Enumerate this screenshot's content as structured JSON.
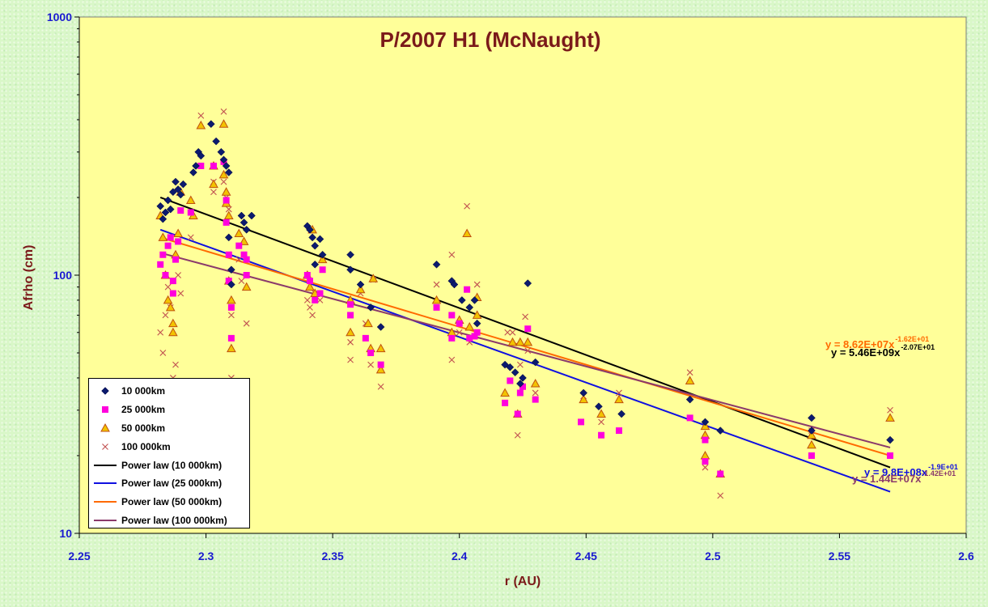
{
  "chart_data": {
    "type": "scatter",
    "title": "P/2007 H1 (McNaught)",
    "xlabel": "r (AU)",
    "ylabel": "Afrho (cm)",
    "xlim": [
      2.25,
      2.6
    ],
    "ylim": [
      10,
      1000
    ],
    "y_scale": "log",
    "x_ticks": [
      "2.25",
      "2.3",
      "2.35",
      "2.4",
      "2.45",
      "2.5",
      "2.55",
      "2.6"
    ],
    "y_ticks": [
      "10",
      "100",
      "1000"
    ],
    "grid": false,
    "legend_position": "bottom-left",
    "series": [
      {
        "name": "10 000km",
        "marker": "diamond",
        "color": "#0b1a6e",
        "points": [
          [
            2.282,
            185
          ],
          [
            2.283,
            165
          ],
          [
            2.284,
            175
          ],
          [
            2.285,
            195
          ],
          [
            2.286,
            180
          ],
          [
            2.287,
            210
          ],
          [
            2.288,
            230
          ],
          [
            2.289,
            215
          ],
          [
            2.29,
            205
          ],
          [
            2.291,
            225
          ],
          [
            2.295,
            250
          ],
          [
            2.296,
            265
          ],
          [
            2.297,
            300
          ],
          [
            2.298,
            290
          ],
          [
            2.302,
            385
          ],
          [
            2.304,
            330
          ],
          [
            2.306,
            300
          ],
          [
            2.307,
            280
          ],
          [
            2.308,
            265
          ],
          [
            2.309,
            250
          ],
          [
            2.309,
            140
          ],
          [
            2.31,
            105
          ],
          [
            2.31,
            92
          ],
          [
            2.314,
            170
          ],
          [
            2.315,
            160
          ],
          [
            2.316,
            150
          ],
          [
            2.318,
            170
          ],
          [
            2.34,
            155
          ],
          [
            2.341,
            150
          ],
          [
            2.342,
            140
          ],
          [
            2.343,
            130
          ],
          [
            2.343,
            110
          ],
          [
            2.345,
            138
          ],
          [
            2.346,
            120
          ],
          [
            2.357,
            120
          ],
          [
            2.357,
            105
          ],
          [
            2.361,
            92
          ],
          [
            2.365,
            75
          ],
          [
            2.369,
            63
          ],
          [
            2.391,
            110
          ],
          [
            2.397,
            95
          ],
          [
            2.398,
            92
          ],
          [
            2.401,
            80
          ],
          [
            2.404,
            75
          ],
          [
            2.406,
            80
          ],
          [
            2.407,
            65
          ],
          [
            2.418,
            45
          ],
          [
            2.42,
            44
          ],
          [
            2.422,
            42
          ],
          [
            2.424,
            38
          ],
          [
            2.425,
            40
          ],
          [
            2.427,
            93
          ],
          [
            2.43,
            46
          ],
          [
            2.449,
            35
          ],
          [
            2.455,
            31
          ],
          [
            2.464,
            29
          ],
          [
            2.491,
            33
          ],
          [
            2.497,
            27
          ],
          [
            2.503,
            25
          ],
          [
            2.539,
            28
          ],
          [
            2.539,
            25
          ],
          [
            2.57,
            23
          ]
        ]
      },
      {
        "name": "25 000km",
        "marker": "square",
        "color": "#ff00dd",
        "points": [
          [
            2.282,
            110
          ],
          [
            2.283,
            120
          ],
          [
            2.284,
            100
          ],
          [
            2.285,
            130
          ],
          [
            2.286,
            140
          ],
          [
            2.287,
            95
          ],
          [
            2.287,
            85
          ],
          [
            2.288,
            115
          ],
          [
            2.289,
            135
          ],
          [
            2.29,
            178
          ],
          [
            2.294,
            175
          ],
          [
            2.298,
            265
          ],
          [
            2.303,
            265
          ],
          [
            2.307,
            275
          ],
          [
            2.308,
            195
          ],
          [
            2.308,
            160
          ],
          [
            2.309,
            120
          ],
          [
            2.309,
            95
          ],
          [
            2.31,
            75
          ],
          [
            2.31,
            57
          ],
          [
            2.313,
            130
          ],
          [
            2.315,
            120
          ],
          [
            2.316,
            115
          ],
          [
            2.316,
            100
          ],
          [
            2.34,
            100
          ],
          [
            2.341,
            95
          ],
          [
            2.343,
            80
          ],
          [
            2.345,
            85
          ],
          [
            2.346,
            105
          ],
          [
            2.357,
            77
          ],
          [
            2.357,
            70
          ],
          [
            2.363,
            57
          ],
          [
            2.365,
            50
          ],
          [
            2.369,
            45
          ],
          [
            2.391,
            75
          ],
          [
            2.397,
            70
          ],
          [
            2.397,
            57
          ],
          [
            2.4,
            65
          ],
          [
            2.403,
            88
          ],
          [
            2.404,
            57
          ],
          [
            2.406,
            58
          ],
          [
            2.407,
            60
          ],
          [
            2.418,
            32
          ],
          [
            2.42,
            39
          ],
          [
            2.423,
            29
          ],
          [
            2.424,
            35
          ],
          [
            2.425,
            37
          ],
          [
            2.427,
            62
          ],
          [
            2.43,
            33
          ],
          [
            2.448,
            27
          ],
          [
            2.456,
            24
          ],
          [
            2.463,
            25
          ],
          [
            2.491,
            28
          ],
          [
            2.497,
            23
          ],
          [
            2.497,
            19
          ],
          [
            2.503,
            17
          ],
          [
            2.539,
            20
          ],
          [
            2.57,
            20
          ]
        ]
      },
      {
        "name": "50 000km",
        "marker": "triangle",
        "color": "#f2c300",
        "points": [
          [
            2.282,
            170
          ],
          [
            2.283,
            140
          ],
          [
            2.284,
            100
          ],
          [
            2.285,
            80
          ],
          [
            2.286,
            75
          ],
          [
            2.287,
            65
          ],
          [
            2.287,
            60
          ],
          [
            2.288,
            120
          ],
          [
            2.289,
            145
          ],
          [
            2.29,
            210
          ],
          [
            2.294,
            195
          ],
          [
            2.295,
            170
          ],
          [
            2.298,
            380
          ],
          [
            2.303,
            265
          ],
          [
            2.303,
            225
          ],
          [
            2.307,
            385
          ],
          [
            2.307,
            245
          ],
          [
            2.308,
            210
          ],
          [
            2.308,
            190
          ],
          [
            2.309,
            170
          ],
          [
            2.309,
            95
          ],
          [
            2.31,
            80
          ],
          [
            2.31,
            52
          ],
          [
            2.313,
            145
          ],
          [
            2.315,
            135
          ],
          [
            2.316,
            90
          ],
          [
            2.34,
            100
          ],
          [
            2.341,
            90
          ],
          [
            2.342,
            150
          ],
          [
            2.343,
            85
          ],
          [
            2.346,
            115
          ],
          [
            2.357,
            80
          ],
          [
            2.357,
            60
          ],
          [
            2.361,
            88
          ],
          [
            2.364,
            65
          ],
          [
            2.365,
            52
          ],
          [
            2.366,
            97
          ],
          [
            2.369,
            52
          ],
          [
            2.369,
            43
          ],
          [
            2.391,
            80
          ],
          [
            2.397,
            60
          ],
          [
            2.4,
            67
          ],
          [
            2.403,
            145
          ],
          [
            2.404,
            63
          ],
          [
            2.407,
            70
          ],
          [
            2.407,
            82
          ],
          [
            2.418,
            35
          ],
          [
            2.421,
            55
          ],
          [
            2.423,
            29
          ],
          [
            2.424,
            55
          ],
          [
            2.427,
            55
          ],
          [
            2.43,
            38
          ],
          [
            2.449,
            33
          ],
          [
            2.456,
            29
          ],
          [
            2.463,
            33
          ],
          [
            2.491,
            39
          ],
          [
            2.497,
            26
          ],
          [
            2.497,
            20
          ],
          [
            2.497,
            24
          ],
          [
            2.503,
            17
          ],
          [
            2.539,
            24
          ],
          [
            2.539,
            22
          ],
          [
            2.57,
            28
          ]
        ]
      },
      {
        "name": "100 000km",
        "marker": "x",
        "color": "#c05050",
        "points": [
          [
            2.282,
            60
          ],
          [
            2.283,
            50
          ],
          [
            2.284,
            70
          ],
          [
            2.285,
            90
          ],
          [
            2.286,
            75
          ],
          [
            2.287,
            40
          ],
          [
            2.288,
            45
          ],
          [
            2.289,
            100
          ],
          [
            2.29,
            85
          ],
          [
            2.294,
            140
          ],
          [
            2.298,
            415
          ],
          [
            2.303,
            210
          ],
          [
            2.303,
            230
          ],
          [
            2.307,
            430
          ],
          [
            2.307,
            230
          ],
          [
            2.308,
            200
          ],
          [
            2.309,
            180
          ],
          [
            2.309,
            120
          ],
          [
            2.31,
            40
          ],
          [
            2.31,
            70
          ],
          [
            2.313,
            115
          ],
          [
            2.314,
            95
          ],
          [
            2.316,
            65
          ],
          [
            2.34,
            80
          ],
          [
            2.341,
            75
          ],
          [
            2.342,
            70
          ],
          [
            2.343,
            85
          ],
          [
            2.345,
            80
          ],
          [
            2.357,
            47
          ],
          [
            2.357,
            55
          ],
          [
            2.361,
            85
          ],
          [
            2.363,
            65
          ],
          [
            2.365,
            45
          ],
          [
            2.366,
            96
          ],
          [
            2.369,
            37
          ],
          [
            2.391,
            92
          ],
          [
            2.397,
            120
          ],
          [
            2.397,
            47
          ],
          [
            2.4,
            60
          ],
          [
            2.403,
            185
          ],
          [
            2.404,
            55
          ],
          [
            2.407,
            92
          ],
          [
            2.419,
            60
          ],
          [
            2.421,
            60
          ],
          [
            2.423,
            24
          ],
          [
            2.424,
            45
          ],
          [
            2.426,
            69
          ],
          [
            2.427,
            51
          ],
          [
            2.43,
            35
          ],
          [
            2.449,
            34
          ],
          [
            2.456,
            27
          ],
          [
            2.463,
            35
          ],
          [
            2.491,
            42
          ],
          [
            2.497,
            18
          ],
          [
            2.503,
            14
          ],
          [
            2.539,
            25
          ],
          [
            2.57,
            30
          ]
        ]
      }
    ],
    "trendlines": [
      {
        "name": "Power law (10 000km)",
        "color": "#000000",
        "x_range": [
          2.282,
          2.57
        ],
        "y_range": [
          200,
          18
        ],
        "equation": "y = 5.46E+09x",
        "exponent": "-2.07E+01",
        "label_color": "#000000"
      },
      {
        "name": "Power law (25 000km)",
        "color": "#1010e0",
        "x_range": [
          2.282,
          2.57
        ],
        "y_range": [
          150,
          14.5
        ],
        "equation": "y = 9.8E+08x",
        "exponent": "-1.9E+01",
        "label_color": "#1010e0"
      },
      {
        "name": "Power law (50 000km)",
        "color": "#ff6a00",
        "x_range": [
          2.282,
          2.57
        ],
        "y_range": [
          140,
          20
        ],
        "equation": "y = 8.62E+07x",
        "exponent": "-1.62E+01",
        "label_color": "#ff6a00"
      },
      {
        "name": "Power law (100 000km)",
        "color": "#8b3a6b",
        "x_range": [
          2.282,
          2.57
        ],
        "y_range": [
          122,
          21.5
        ],
        "equation": "y = 1.44E+07x",
        "exponent": "-1.42E+01",
        "label_color": "#8b3a6b"
      }
    ]
  }
}
